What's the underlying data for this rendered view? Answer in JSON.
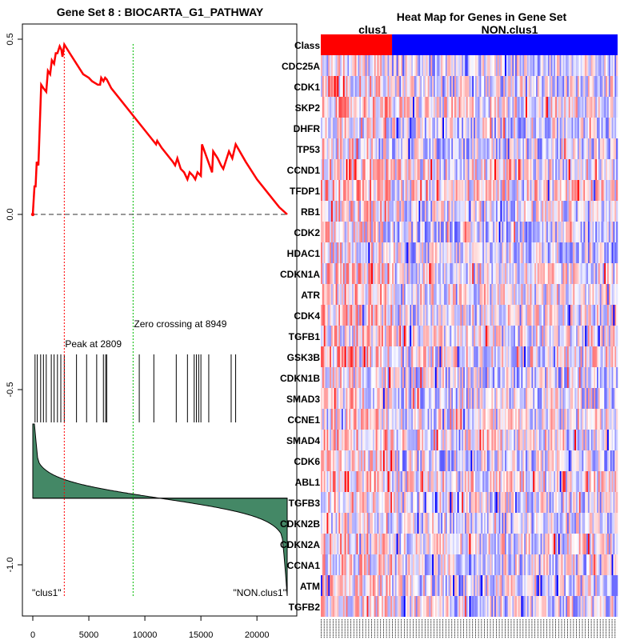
{
  "chart_data": [
    {
      "type": "line",
      "title": "Gene Set  8 : BIOCARTA_G1_PATHWAY",
      "x_ticks": [
        "0",
        "5000",
        "10000",
        "15000",
        "20000"
      ],
      "x_tick_values": [
        0,
        5000,
        10000,
        15000,
        20000
      ],
      "y_ticks": [
        "0.5",
        "0.0",
        "-0.5",
        "-1.0"
      ],
      "y_tick_values": [
        0.5,
        0.0,
        -0.5,
        -1.0
      ],
      "xlim": [
        0,
        22700
      ],
      "ylim": [
        -1.1,
        0.52
      ],
      "peak_label": "Peak at 2809",
      "peak_x": 2809,
      "zero_crossing_label": "Zero crossing at 8949",
      "zero_crossing_x": 8949,
      "left_class_label": "\"clus1\"",
      "right_class_label": "\"NON.clus1\"",
      "colors": {
        "es_line": "#ff0000",
        "peak_line": "#ff0000",
        "zero_line": "#00bb00",
        "metric_fill": "#448866"
      },
      "running_es": [
        [
          0,
          0.0
        ],
        [
          150,
          0.08
        ],
        [
          250,
          0.08
        ],
        [
          350,
          0.15
        ],
        [
          500,
          0.14
        ],
        [
          750,
          0.37
        ],
        [
          950,
          0.36
        ],
        [
          1200,
          0.35
        ],
        [
          1350,
          0.41
        ],
        [
          1550,
          0.4
        ],
        [
          1700,
          0.44
        ],
        [
          1900,
          0.43
        ],
        [
          2050,
          0.46
        ],
        [
          2200,
          0.46
        ],
        [
          2400,
          0.48
        ],
        [
          2550,
          0.47
        ],
        [
          2650,
          0.45
        ],
        [
          2809,
          0.485
        ],
        [
          3300,
          0.46
        ],
        [
          3900,
          0.43
        ],
        [
          4500,
          0.4
        ],
        [
          5000,
          0.39
        ],
        [
          5300,
          0.38
        ],
        [
          5800,
          0.37
        ],
        [
          6000,
          0.37
        ],
        [
          6100,
          0.39
        ],
        [
          6300,
          0.38
        ],
        [
          6450,
          0.39
        ],
        [
          6600,
          0.385
        ],
        [
          7000,
          0.36
        ],
        [
          8000,
          0.32
        ],
        [
          9000,
          0.28
        ],
        [
          10000,
          0.24
        ],
        [
          11000,
          0.2
        ],
        [
          11100,
          0.21
        ],
        [
          11500,
          0.19
        ],
        [
          12500,
          0.15
        ],
        [
          12700,
          0.14
        ],
        [
          12900,
          0.16
        ],
        [
          13200,
          0.13
        ],
        [
          13500,
          0.12
        ],
        [
          13800,
          0.1
        ],
        [
          14000,
          0.12
        ],
        [
          14300,
          0.11
        ],
        [
          14500,
          0.1
        ],
        [
          14700,
          0.12
        ],
        [
          15000,
          0.11
        ],
        [
          15100,
          0.2
        ],
        [
          16000,
          0.12
        ],
        [
          16100,
          0.18
        ],
        [
          16500,
          0.16
        ],
        [
          16800,
          0.14
        ],
        [
          17000,
          0.13
        ],
        [
          17500,
          0.18
        ],
        [
          17800,
          0.16
        ],
        [
          18100,
          0.2
        ],
        [
          19000,
          0.15
        ],
        [
          20000,
          0.1
        ],
        [
          21000,
          0.06
        ],
        [
          22000,
          0.02
        ],
        [
          22700,
          0.0
        ]
      ],
      "hit_positions": [
        200,
        400,
        700,
        950,
        1200,
        1650,
        1900,
        2200,
        2500,
        2809,
        3900,
        4800,
        5700,
        6300,
        6500,
        6600,
        9500,
        10800,
        12800,
        13800,
        14400,
        14600,
        14800,
        15000,
        15700,
        17700,
        18100
      ],
      "metric_baseline": -0.81
    },
    {
      "type": "heatmap",
      "title": "Heat Map for Genes in Gene Set",
      "class_row_label": "Class",
      "class_labels": [
        "clus1",
        "NON.clus1"
      ],
      "class_split_fraction": 0.24,
      "colors": {
        "class_a": "#ff0000",
        "class_b": "#0000ff",
        "high": "#ff0000",
        "low": "#0000ff",
        "mid": "#ffffff"
      },
      "genes": [
        "CDC25A",
        "CDK1",
        "SKP2",
        "DHFR",
        "TP53",
        "CCND1",
        "TFDP1",
        "RB1",
        "CDK2",
        "HDAC1",
        "CDKN1A",
        "ATR",
        "CDK4",
        "TGFB1",
        "GSK3B",
        "CDKN1B",
        "SMAD3",
        "CCNE1",
        "SMAD4",
        "CDK6",
        "ABL1",
        "TGFB3",
        "CDKN2B",
        "CDKN2A",
        "CCNA1",
        "ATM",
        "TGFB2"
      ],
      "num_samples": 200
    }
  ]
}
